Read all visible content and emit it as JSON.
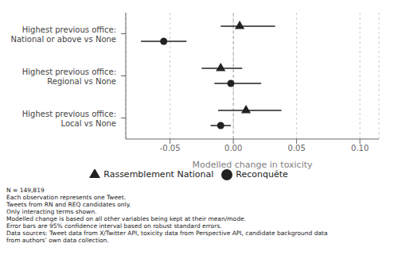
{
  "chart_data": {
    "type": "errorbar",
    "orientation": "horizontal",
    "categories": [
      "Highest previous office: National or above vs None",
      "Highest previous office: Regional vs None",
      "Highest previous office: Local vs None"
    ],
    "series": [
      {
        "name": "Reconquête",
        "color": "#222222",
        "marker": "circle",
        "values": [
          -0.055,
          -0.002,
          -0.01
        ],
        "ci_low": [
          -0.073,
          -0.015,
          -0.018
        ],
        "ci_high": [
          -0.037,
          0.022,
          -0.002
        ]
      },
      {
        "name": "Rassemblement National",
        "color": "#222222",
        "marker": "triangle",
        "values": [
          0.005,
          -0.01,
          0.01
        ],
        "ci_low": [
          -0.01,
          -0.025,
          -0.012
        ],
        "ci_high": [
          0.033,
          0.007,
          0.038
        ]
      }
    ],
    "xlabel": "Modelled change in toxicity",
    "xlim": [
      -0.085,
      0.115
    ],
    "xticks": [
      -0.05,
      {
        "value": 0,
        "label": "0.00"
      },
      0.05,
      {
        "value": 0.1,
        "label": "0.10"
      }
    ],
    "vline": 0,
    "grid": true,
    "legend": "bottom",
    "annotations": [
      "N = 149,819\nEach observation represents one Tweet.\nTweets from RN and REQ candidates only.\nOnly interacting terms shown.\nModelled change is based on all other variables being kept at their mean/mode.\nError bars are 95% confidence interval based on robust standard errors.\nData sources: Tweet data from X/Twitter API, toxicity data from Perspective API, candidate background data\nfrom authors’ own data collection."
    ]
  }
}
